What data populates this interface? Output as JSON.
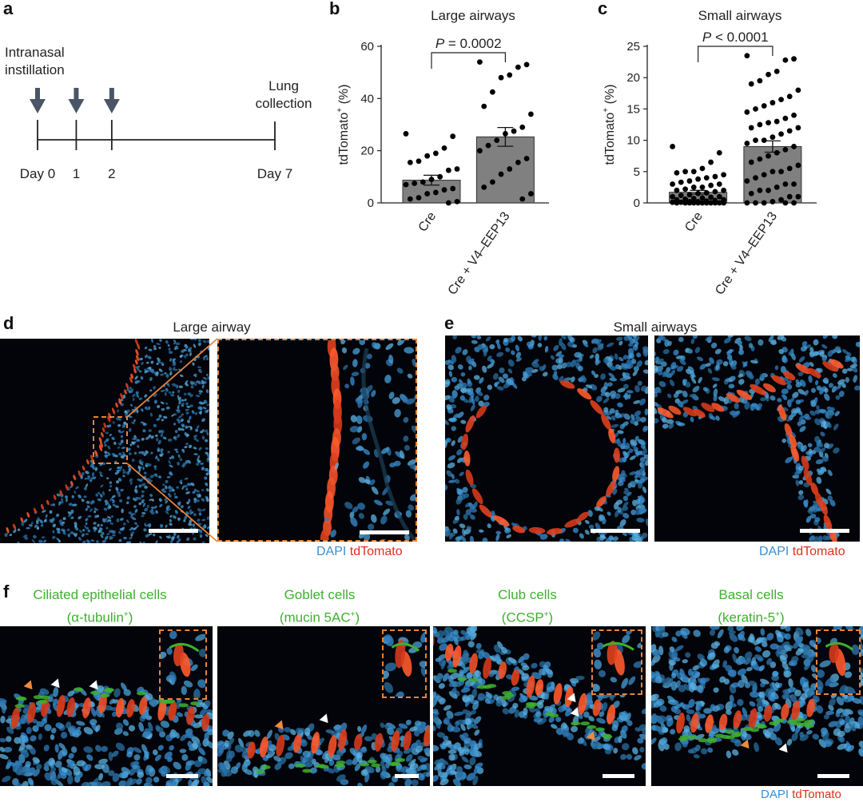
{
  "panels": {
    "a": {
      "label": "a",
      "instillation_text": [
        "Intranasal",
        "instillation"
      ],
      "collection_text": [
        "Lung",
        "collection"
      ],
      "timepoints": [
        {
          "label": "Day 0",
          "day": 0,
          "arrow": true
        },
        {
          "label": "1",
          "day": 1,
          "arrow": true
        },
        {
          "label": "2",
          "day": 2,
          "arrow": true
        },
        {
          "label": "Day 7",
          "day": 7,
          "arrow": false
        }
      ],
      "colors": {
        "arrow": "#4a5566",
        "line": "#222222"
      }
    },
    "b": {
      "label": "b"
    },
    "c": {
      "label": "c"
    },
    "d": {
      "label": "d",
      "title": "Large airway",
      "legend": {
        "dapi": "DAPI",
        "tdtomato": "tdTomato"
      }
    },
    "e": {
      "label": "e",
      "title": "Small airways",
      "legend": {
        "dapi": "DAPI",
        "tdtomato": "tdTomato"
      }
    },
    "f": {
      "label": "f",
      "titles": [
        {
          "line1": "Ciliated epithelial cells",
          "line2": "(α-tubulin",
          "sup": "+",
          "close": ")"
        },
        {
          "line1": "Goblet cells",
          "line2": "(mucin 5AC",
          "sup": "+",
          "close": ")"
        },
        {
          "line1": "Club cells",
          "line2": "(CCSP",
          "sup": "+",
          "close": ")"
        },
        {
          "line1": "Basal cells",
          "line2": "(keratin-5",
          "sup": "+",
          "close": ")"
        }
      ],
      "legend": {
        "dapi": "DAPI",
        "tdtomato": "tdTomato"
      }
    }
  },
  "colors": {
    "dapi": "#3a8fd3",
    "tdtomato": "#e0301e",
    "marker_green": "#3fb02f",
    "bar_fill": "#808080",
    "dashed_box": "#e8843a",
    "arrowhead_orange": "#f08a3c",
    "arrowhead_white": "#ffffff"
  },
  "chart_data": [
    {
      "type": "bar",
      "panel": "b",
      "title": "Large airways",
      "ylabel": "tdTomato",
      "ylabel_sup": "+",
      "ylabel_unit": "(%)",
      "ylim": [
        0,
        60
      ],
      "yticks": [
        0,
        20,
        40,
        60
      ],
      "categories": [
        "Cre",
        "Cre + V4–EEP13"
      ],
      "values": [
        8.7,
        25.3
      ],
      "errors": [
        1.9,
        3.6
      ],
      "points": [
        [
          26.5,
          25.5,
          21,
          19,
          18,
          16,
          15.5,
          13,
          12.5,
          10,
          9,
          8,
          7.5,
          7,
          5.5,
          5,
          4,
          3.5,
          2,
          1.5,
          0.5,
          0
        ],
        [
          54,
          53,
          52,
          49,
          48,
          42.5,
          37,
          34,
          29,
          27.5,
          26.5,
          24,
          22,
          20,
          17,
          15.5,
          13,
          11,
          8,
          6,
          3.5,
          1.5
        ]
      ],
      "significance": "P = 0.0002",
      "significance_italic": "P",
      "significance_rest": " = 0.0002"
    },
    {
      "type": "bar",
      "panel": "c",
      "title": "Small airways",
      "ylabel": "tdTomato",
      "ylabel_sup": "+",
      "ylabel_unit": "(%)",
      "ylim": [
        0,
        25
      ],
      "yticks": [
        0,
        5,
        10,
        15,
        20,
        25
      ],
      "categories": [
        "Cre",
        "Cre + V4–EEP13"
      ],
      "values": [
        1.7,
        9.0
      ],
      "errors": [
        0.3,
        0.9
      ],
      "points": [
        [
          9,
          8,
          6.5,
          5.5,
          5,
          5,
          4.8,
          4.5,
          4.2,
          4,
          3.8,
          3.5,
          3.3,
          3,
          3,
          2.8,
          2.5,
          2.5,
          2.2,
          2,
          2,
          1.8,
          1.6,
          1.5,
          1.3,
          1.2,
          1,
          1,
          0.9,
          0.8,
          0.7,
          0.6,
          0.5,
          0.5,
          0.4,
          0.3,
          0.2,
          0.2,
          0.1,
          0.1,
          0,
          0,
          0,
          0,
          0,
          0,
          0,
          0,
          0,
          0,
          0
        ],
        [
          23.5,
          23,
          22.8,
          21,
          20.5,
          19.5,
          19,
          18,
          17,
          16.5,
          16,
          15.5,
          15,
          14.5,
          14,
          13.5,
          13,
          12.8,
          12.5,
          12,
          12,
          11.5,
          11,
          10.5,
          10,
          10,
          9.5,
          9,
          8.5,
          8,
          7.5,
          7,
          6.5,
          6,
          5.5,
          5,
          5,
          4.5,
          4,
          3.5,
          3,
          3,
          2.5,
          2,
          2,
          1.5,
          1,
          1,
          0.5,
          0.2,
          0,
          0,
          0,
          0,
          0
        ]
      ],
      "significance": "P < 0.0001",
      "significance_italic": "P",
      "significance_rest": " < 0.0001"
    }
  ]
}
